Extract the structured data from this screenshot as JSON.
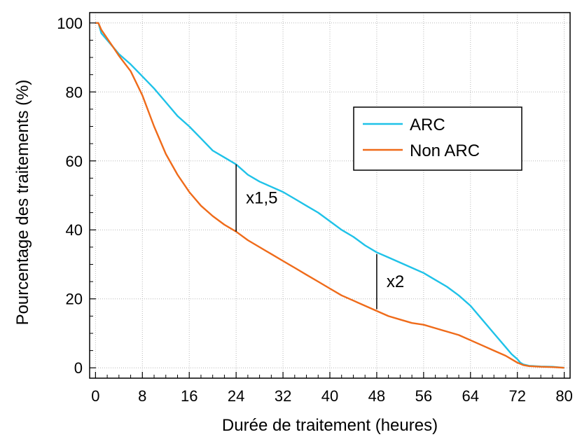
{
  "chart_data": {
    "type": "line",
    "title": "",
    "xlabel": "Durée de traitement (heures)",
    "ylabel": "Pourcentage des traitements (%)",
    "xlim": [
      -1,
      81
    ],
    "ylim": [
      -3,
      103
    ],
    "xticks": [
      0,
      8,
      16,
      24,
      32,
      40,
      48,
      56,
      64,
      72,
      80
    ],
    "yticks": [
      0,
      20,
      40,
      60,
      80,
      100
    ],
    "grid": true,
    "legend_position": "right",
    "series": [
      {
        "name": "ARC",
        "color": "#1fc2e8",
        "x": [
          0,
          0.5,
          1,
          2,
          3,
          4,
          6,
          8,
          10,
          12,
          14,
          16,
          18,
          20,
          22,
          24,
          26,
          28,
          30,
          32,
          34,
          36,
          38,
          40,
          42,
          44,
          46,
          48,
          50,
          52,
          54,
          56,
          58,
          60,
          62,
          64,
          66,
          68,
          70,
          71,
          72,
          72.5,
          73,
          74,
          75,
          76,
          78,
          80
        ],
        "y": [
          100,
          100,
          97,
          95,
          93,
          91,
          88,
          84.5,
          81,
          77,
          73,
          70,
          66.5,
          63,
          61,
          59,
          56,
          54,
          52.5,
          51,
          49,
          47,
          45,
          42.5,
          40,
          38,
          35.5,
          33.5,
          32,
          30.5,
          29,
          27.5,
          25.5,
          23.5,
          21,
          18,
          14,
          10,
          6,
          4,
          2.5,
          1.5,
          1,
          0.6,
          0.5,
          0.4,
          0.3,
          0
        ]
      },
      {
        "name": "Non ARC",
        "color": "#ef6b1a",
        "x": [
          0,
          0.5,
          1,
          2,
          3,
          4,
          6,
          8,
          10,
          12,
          14,
          16,
          18,
          20,
          22,
          24,
          26,
          28,
          30,
          32,
          34,
          36,
          38,
          40,
          42,
          44,
          46,
          48,
          50,
          52,
          54,
          56,
          58,
          60,
          62,
          64,
          66,
          68,
          70,
          72,
          73,
          74,
          76,
          78,
          80
        ],
        "y": [
          100,
          100,
          98,
          95.5,
          93,
          90.5,
          86,
          79,
          70,
          62,
          56,
          51,
          47,
          44,
          41.5,
          39.5,
          37,
          35,
          33,
          31,
          29,
          27,
          25,
          23,
          21,
          19.5,
          18,
          16.5,
          15,
          14,
          13,
          12.5,
          11.5,
          10.5,
          9.5,
          8,
          6.5,
          5,
          3.5,
          1.5,
          0.8,
          0.5,
          0.3,
          0.2,
          0
        ]
      }
    ],
    "annotations": [
      {
        "text": "x1,5",
        "x": 24,
        "y_from": 39.5,
        "y_to": 59
      },
      {
        "text": "x2",
        "x": 48,
        "y_from": 17,
        "y_to": 33
      }
    ]
  }
}
